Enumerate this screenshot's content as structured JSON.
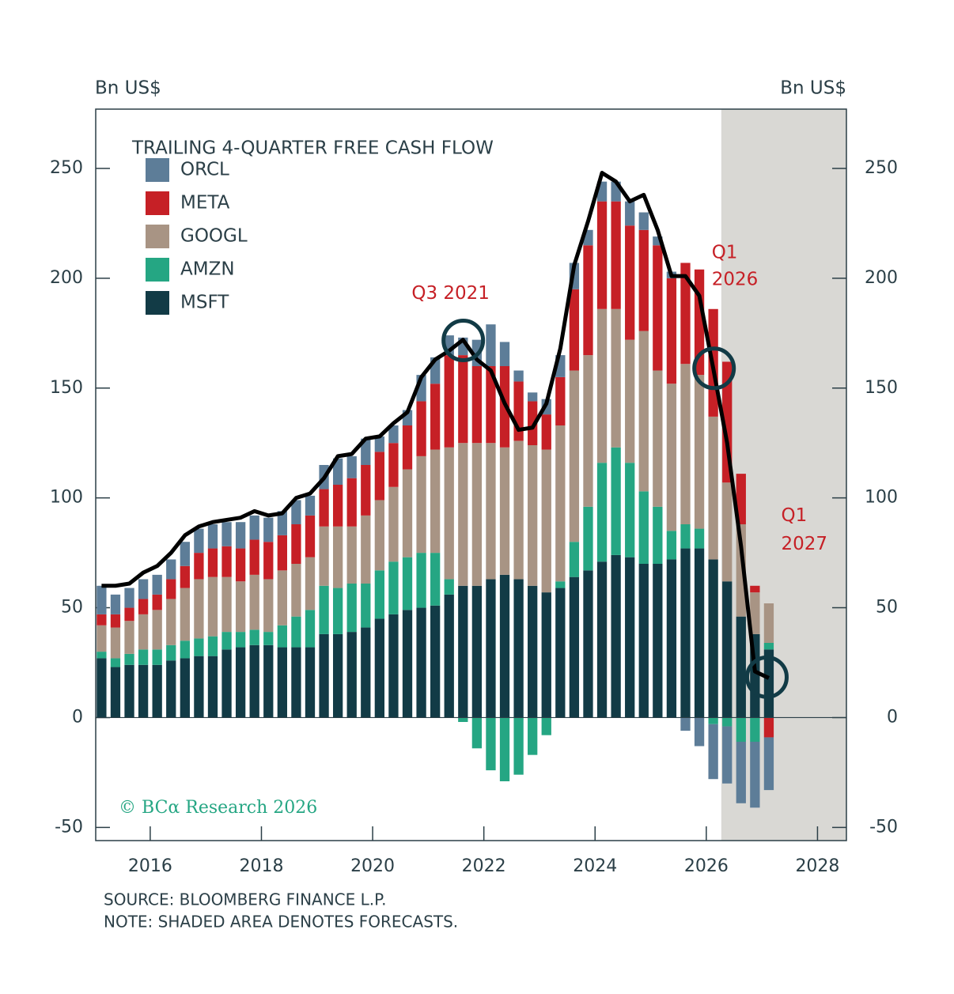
{
  "chart_data": {
    "type": "bar",
    "stacked": true,
    "title": "TRAILING 4-QUARTER FREE CASH FLOW",
    "y_label": "Bn US$",
    "y2_label": "Bn US$",
    "source": "SOURCE: BLOOMBERG FINANCE L.P.",
    "note": "NOTE: SHADED AREA DENOTES FORECASTS.",
    "watermark": "© BCα Research 2026",
    "legend": "upper left",
    "xlim": [
      2015.02,
      2028.52
    ],
    "xticks": [
      2016,
      2018,
      2020,
      2022,
      2024,
      2026,
      2028
    ],
    "ylim": [
      -56,
      277
    ],
    "yticks": [
      -50,
      0,
      50,
      100,
      150,
      200,
      250
    ],
    "y2lim": [
      -56,
      277
    ],
    "y2ticks": [
      -50,
      0,
      50,
      100,
      150,
      200,
      250
    ],
    "shaded_from": 2026.27,
    "shade_color": "#d9d8d4",
    "x": [
      2015.125,
      2015.375,
      2015.625,
      2015.875,
      2016.125,
      2016.375,
      2016.625,
      2016.875,
      2017.125,
      2017.375,
      2017.625,
      2017.875,
      2018.125,
      2018.375,
      2018.625,
      2018.875,
      2019.125,
      2019.375,
      2019.625,
      2019.875,
      2020.125,
      2020.375,
      2020.625,
      2020.875,
      2021.125,
      2021.375,
      2021.625,
      2021.875,
      2022.125,
      2022.375,
      2022.625,
      2022.875,
      2023.125,
      2023.375,
      2023.625,
      2023.875,
      2024.125,
      2024.375,
      2024.625,
      2024.875,
      2025.125,
      2025.375,
      2025.625,
      2025.875,
      2026.125,
      2026.375,
      2026.625,
      2026.875,
      2027.125
    ],
    "series": [
      {
        "name": "MSFT",
        "color": "#123b46",
        "values": [
          27,
          23,
          24,
          24,
          24,
          26,
          27,
          28,
          28,
          31,
          32,
          33,
          33,
          32,
          32,
          32,
          38,
          38,
          39,
          41,
          45,
          47,
          49,
          50,
          51,
          56,
          60,
          60,
          63,
          65,
          63,
          60,
          57,
          59,
          64,
          67,
          71,
          74,
          73,
          70,
          70,
          72,
          77,
          77,
          72,
          62,
          46,
          38,
          31
        ]
      },
      {
        "name": "AMZN",
        "color": "#25a683",
        "values": [
          3,
          4,
          5,
          7,
          7,
          7,
          8,
          8,
          9,
          8,
          7,
          7,
          6,
          10,
          14,
          17,
          22,
          21,
          22,
          20,
          22,
          24,
          24,
          25,
          24,
          7,
          -2,
          -14,
          -24,
          -29,
          -26,
          -17,
          -8,
          3,
          16,
          29,
          45,
          49,
          43,
          33,
          26,
          13,
          11,
          9,
          -3,
          -4,
          -11,
          -11,
          3
        ]
      },
      {
        "name": "GOOGL",
        "color": "#a89484",
        "values": [
          12,
          14,
          15,
          16,
          18,
          21,
          24,
          27,
          27,
          25,
          23,
          25,
          24,
          25,
          24,
          24,
          27,
          28,
          26,
          31,
          32,
          34,
          40,
          44,
          47,
          60,
          65,
          65,
          62,
          58,
          63,
          64,
          65,
          71,
          78,
          69,
          70,
          63,
          56,
          73,
          62,
          67,
          73,
          70,
          65,
          45,
          42,
          19,
          18
        ]
      },
      {
        "name": "META",
        "color": "#c62026",
        "values": [
          5,
          6,
          6,
          7,
          7,
          9,
          10,
          12,
          13,
          14,
          15,
          16,
          17,
          16,
          18,
          19,
          17,
          19,
          22,
          23,
          22,
          20,
          20,
          25,
          30,
          42,
          40,
          35,
          35,
          37,
          27,
          20,
          16,
          22,
          37,
          50,
          49,
          49,
          52,
          46,
          57,
          48,
          46,
          48,
          49,
          55,
          23,
          3,
          -9
        ]
      },
      {
        "name": "ORCL",
        "color": "#5d7d98",
        "values": [
          13,
          9,
          9,
          9,
          9,
          9,
          11,
          11,
          11,
          11,
          12,
          11,
          11,
          11,
          11,
          9,
          11,
          12,
          10,
          12,
          7,
          8,
          7,
          12,
          12,
          9,
          8,
          12,
          19,
          11,
          5,
          4,
          7,
          10,
          12,
          7,
          9,
          9,
          11,
          8,
          4,
          3,
          -6,
          -13,
          -25,
          -26,
          -28,
          -30,
          -24
        ]
      }
    ],
    "line": {
      "color": "#000000",
      "values": [
        60,
        60,
        61,
        66,
        69,
        75,
        83,
        87,
        89,
        90,
        91,
        94,
        92,
        93,
        100,
        102,
        109,
        119,
        120,
        127,
        128,
        134,
        139,
        155,
        163,
        167,
        172,
        163,
        158,
        143,
        131,
        132,
        143,
        168,
        206,
        226,
        248,
        244,
        235,
        238,
        222,
        201,
        201,
        192,
        159,
        125,
        78,
        21,
        18
      ]
    },
    "annotations": [
      {
        "text": [
          "Q3 2021"
        ],
        "x": 2021.63,
        "y": 171.7
      },
      {
        "text": [
          "Q1",
          "2026"
        ],
        "x": 2026.14,
        "y": 159
      },
      {
        "text": [
          "Q1",
          "2027"
        ],
        "x": 2027.09,
        "y": 18.4
      }
    ]
  }
}
